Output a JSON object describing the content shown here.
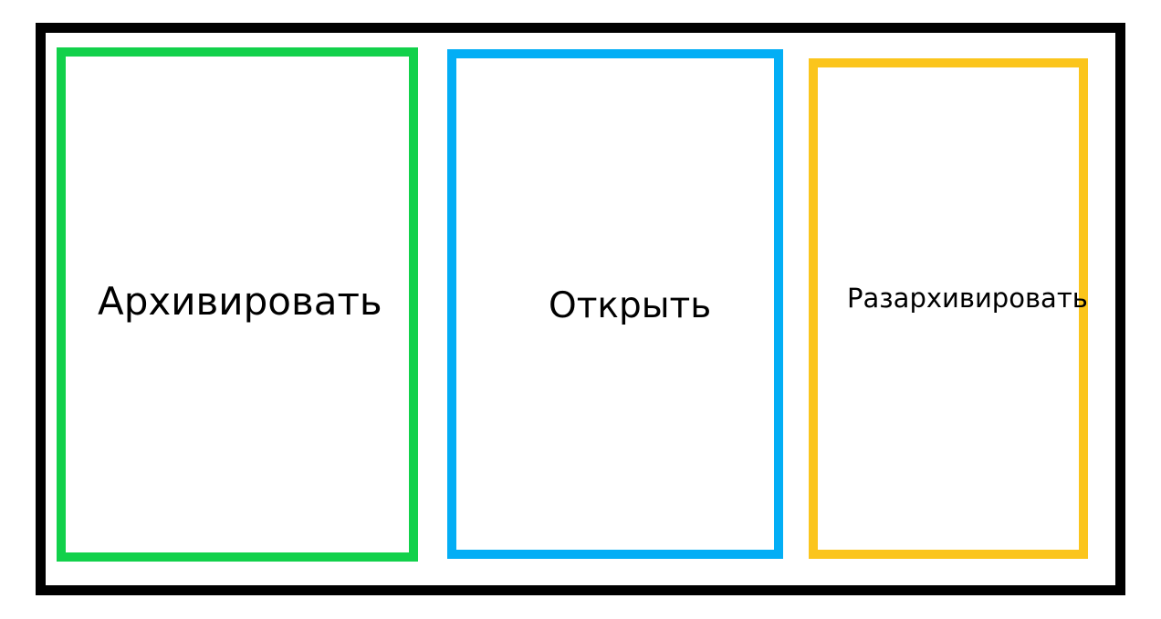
{
  "panels": {
    "archive": {
      "label": "Архивировать",
      "color": "#12d14b"
    },
    "open": {
      "label": "Открыть",
      "color": "#03aef5"
    },
    "extract": {
      "label": "Разархивировать",
      "color": "#fbc51c"
    }
  },
  "frame": {
    "color": "#000000"
  }
}
